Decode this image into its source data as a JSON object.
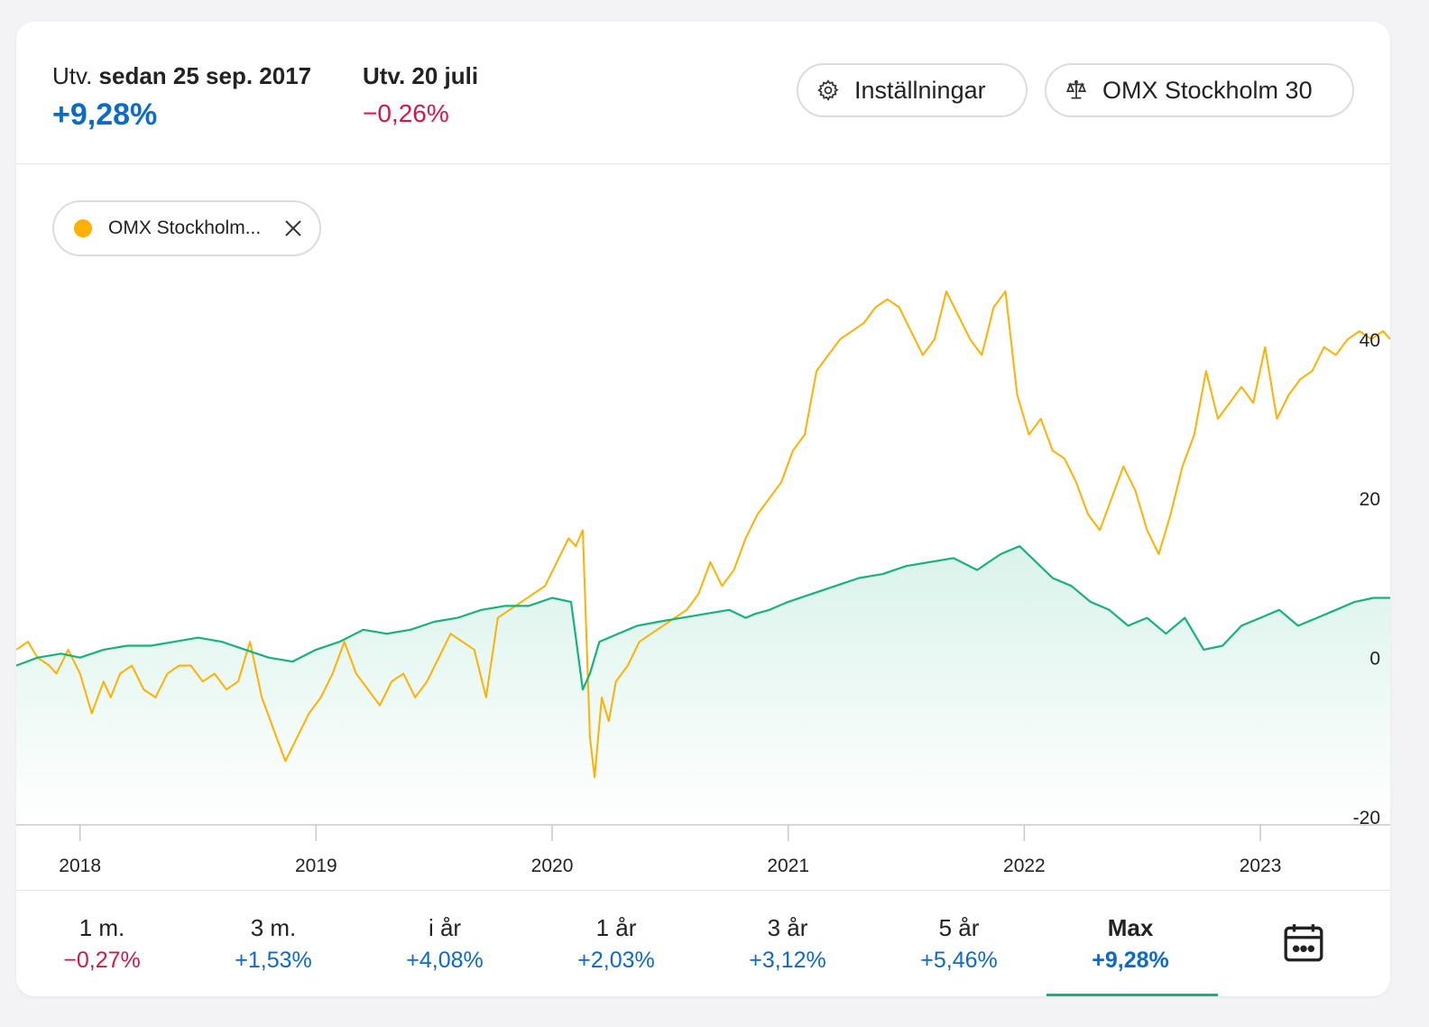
{
  "header": {
    "since_prefix": "Utv.",
    "since_date": "sedan 25 sep. 2017",
    "since_value": "+9,28%",
    "day_label": "Utv. 20 juli",
    "day_value": "−0,26%",
    "settings_label": "Inställningar",
    "compare_label": "OMX Stockholm 30"
  },
  "chip": {
    "label": "OMX Stockholm...",
    "color": "#ffb000"
  },
  "periods": [
    {
      "label": "1 m.",
      "value": "−0,27%",
      "sign": "neg"
    },
    {
      "label": "3 m.",
      "value": "+1,53%",
      "sign": "pos"
    },
    {
      "label": "i år",
      "value": "+4,08%",
      "sign": "pos"
    },
    {
      "label": "1 år",
      "value": "+2,03%",
      "sign": "pos"
    },
    {
      "label": "3 år",
      "value": "+3,12%",
      "sign": "pos"
    },
    {
      "label": "5 år",
      "value": "+5,46%",
      "sign": "pos"
    },
    {
      "label": "Max",
      "value": "+9,28%",
      "sign": "pos",
      "active": true
    }
  ],
  "colors": {
    "positive": "#0b6bc8",
    "negative": "#d2184a",
    "fund_line": "#16b27c",
    "index_line": "#ffb000"
  },
  "chart_data": {
    "type": "line",
    "x_ticks": [
      "2018",
      "2019",
      "2020",
      "2021",
      "2022",
      "2023"
    ],
    "y_ticks": [
      "40",
      "20",
      "0",
      "-20"
    ],
    "ylim": [
      -21,
      47
    ],
    "xlim": [
      2017.73,
      2023.55
    ],
    "grid": false,
    "series": [
      {
        "name": "OMX Stockholm...",
        "color": "#ffb000",
        "x": [
          2017.73,
          2017.78,
          2017.82,
          2017.87,
          2017.9,
          2017.95,
          2018.0,
          2018.05,
          2018.1,
          2018.13,
          2018.17,
          2018.22,
          2018.27,
          2018.32,
          2018.37,
          2018.42,
          2018.47,
          2018.52,
          2018.57,
          2018.62,
          2018.67,
          2018.72,
          2018.77,
          2018.82,
          2018.87,
          2018.92,
          2018.97,
          2019.02,
          2019.07,
          2019.12,
          2019.17,
          2019.22,
          2019.27,
          2019.32,
          2019.37,
          2019.42,
          2019.47,
          2019.52,
          2019.57,
          2019.62,
          2019.67,
          2019.72,
          2019.77,
          2019.82,
          2019.87,
          2019.92,
          2019.97,
          2020.02,
          2020.07,
          2020.1,
          2020.13,
          2020.16,
          2020.18,
          2020.21,
          2020.24,
          2020.27,
          2020.32,
          2020.37,
          2020.42,
          2020.47,
          2020.52,
          2020.57,
          2020.62,
          2020.67,
          2020.72,
          2020.77,
          2020.82,
          2020.87,
          2020.92,
          2020.97,
          2021.02,
          2021.07,
          2021.12,
          2021.17,
          2021.22,
          2021.27,
          2021.32,
          2021.37,
          2021.42,
          2021.47,
          2021.52,
          2021.57,
          2021.62,
          2021.67,
          2021.72,
          2021.77,
          2021.82,
          2021.87,
          2021.92,
          2021.97,
          2022.02,
          2022.07,
          2022.12,
          2022.17,
          2022.22,
          2022.27,
          2022.32,
          2022.37,
          2022.42,
          2022.47,
          2022.52,
          2022.57,
          2022.62,
          2022.67,
          2022.72,
          2022.77,
          2022.82,
          2022.87,
          2022.92,
          2022.97,
          2023.02,
          2023.07,
          2023.12,
          2023.17,
          2023.22,
          2023.27,
          2023.32,
          2023.37,
          2023.42,
          2023.47,
          2023.52,
          2023.55
        ],
        "y": [
          1,
          2,
          0,
          -1,
          -2,
          1,
          -2,
          -7,
          -3,
          -5,
          -2,
          -1,
          -4,
          -5,
          -2,
          -1,
          -1,
          -3,
          -2,
          -4,
          -3,
          2,
          -5,
          -9,
          -13,
          -10,
          -7,
          -5,
          -2,
          2,
          -2,
          -4,
          -6,
          -3,
          -2,
          -5,
          -3,
          0,
          3,
          2,
          1,
          -5,
          5,
          6,
          7,
          8,
          9,
          12,
          15,
          14,
          16,
          -10,
          -15,
          -5,
          -8,
          -3,
          -1,
          2,
          3,
          4,
          5,
          6,
          8,
          12,
          9,
          11,
          15,
          18,
          20,
          22,
          26,
          28,
          36,
          38,
          40,
          41,
          42,
          44,
          45,
          44,
          41,
          38,
          40,
          46,
          43,
          40,
          38,
          44,
          46,
          33,
          28,
          30,
          26,
          25,
          22,
          18,
          16,
          20,
          24,
          21,
          16,
          13,
          18,
          24,
          28,
          36,
          30,
          32,
          34,
          32,
          39,
          30,
          33,
          35,
          36,
          39,
          38,
          40,
          41,
          40,
          41,
          40
        ],
        "values_note": "index % change"
      },
      {
        "name": "",
        "color": "#16b27c",
        "x": [
          2017.73,
          2017.82,
          2017.92,
          2018.0,
          2018.1,
          2018.2,
          2018.3,
          2018.4,
          2018.5,
          2018.6,
          2018.7,
          2018.8,
          2018.9,
          2019.0,
          2019.1,
          2019.2,
          2019.3,
          2019.4,
          2019.5,
          2019.6,
          2019.7,
          2019.8,
          2019.9,
          2020.0,
          2020.08,
          2020.13,
          2020.16,
          2020.2,
          2020.28,
          2020.36,
          2020.45,
          2020.55,
          2020.65,
          2020.75,
          2020.82,
          2020.86,
          2020.92,
          2021.0,
          2021.1,
          2021.2,
          2021.3,
          2021.4,
          2021.5,
          2021.6,
          2021.7,
          2021.8,
          2021.9,
          2021.98,
          2022.05,
          2022.12,
          2022.2,
          2022.28,
          2022.36,
          2022.44,
          2022.52,
          2022.6,
          2022.68,
          2022.76,
          2022.84,
          2022.92,
          2023.0,
          2023.08,
          2023.16,
          2023.24,
          2023.32,
          2023.4,
          2023.48,
          2023.55
        ],
        "y": [
          -1,
          0,
          0.5,
          0,
          1,
          1.5,
          1.5,
          2,
          2.5,
          2,
          1,
          0,
          -0.5,
          1,
          2,
          3.5,
          3,
          3.5,
          4.5,
          5,
          6,
          6.5,
          6.5,
          7.5,
          7,
          -4,
          -2,
          2,
          3,
          4,
          4.5,
          5,
          5.5,
          6,
          5,
          5.5,
          6,
          7,
          8,
          9,
          10,
          10.5,
          11.5,
          12,
          12.5,
          11,
          13,
          14,
          12,
          10,
          9,
          7,
          6,
          4,
          5,
          3,
          5,
          1,
          1.5,
          4,
          5,
          6,
          4,
          5,
          6,
          7,
          7.5,
          7.5
        ],
        "fill": true
      }
    ]
  }
}
